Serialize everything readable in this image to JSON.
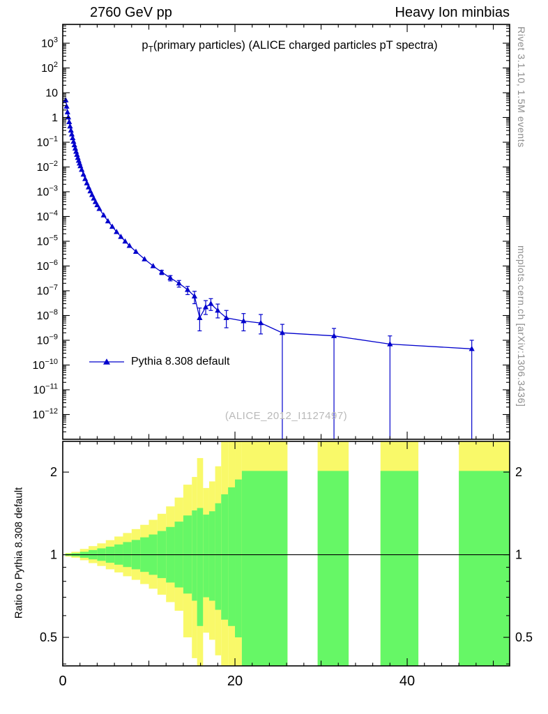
{
  "header": {
    "left": "2760 GeV pp",
    "right": "Heavy Ion minbias"
  },
  "main_title": {
    "prefix": "p",
    "sub": "T",
    "rest": "(primary particles) (ALICE charged particles pT spectra)"
  },
  "legend": {
    "label": "Pythia 8.308 default"
  },
  "watermark": "(ALICE_2012_I1127497)",
  "side_notes": {
    "top": "Rivet 3.1.10,  1.5M events",
    "bottom": "mcplots.cern.ch [arXiv:1306.3436]"
  },
  "ratio_axis_label": "Ratio to Pythia 8.308 default",
  "colors": {
    "line": "#0000cc",
    "marker": "#0000cc",
    "band_yellow": "#f9f969",
    "band_green": "#66f766",
    "frame": "#000000",
    "gray_text": "#8c8c8c",
    "watermark": "#b9b9b9"
  },
  "chart_data": {
    "type": "line",
    "title": "pT(primary particles) (ALICE charged particles pT spectra)",
    "xlabel": "",
    "ylabel": "",
    "legend_position": "left-middle",
    "grid": false,
    "xlim": [
      0,
      51.9
    ],
    "main_ylog_lim": [
      -13,
      3.76
    ],
    "ratio_ylog_lim": [
      -0.405,
      0.413
    ],
    "x_ticks": {
      "major": [
        0,
        20,
        40
      ],
      "major_labels": [
        "0",
        "20",
        "40"
      ],
      "minor_step": 2
    },
    "main_y_label_exponents": [
      3,
      2,
      1,
      0,
      -1,
      -2,
      -3,
      -4,
      -5,
      -6,
      -7,
      -8,
      -9,
      -10,
      -11,
      -12
    ],
    "ratio_ticks": {
      "major": [
        0.5,
        1,
        2
      ],
      "major_labels": [
        "0.5",
        "1",
        "2"
      ],
      "minor": [
        0.4,
        0.6,
        0.7,
        0.8,
        0.9
      ]
    },
    "ratio_reference": 1,
    "series": [
      {
        "name": "Pythia 8.308 default",
        "points": [
          [
            0.35,
            5.0
          ],
          [
            0.45,
            2.8
          ],
          [
            0.55,
            1.65
          ],
          [
            0.65,
            1.02
          ],
          [
            0.75,
            0.66
          ],
          [
            0.85,
            0.44
          ],
          [
            0.95,
            0.3
          ],
          [
            1.05,
            0.21
          ],
          [
            1.15,
            0.148
          ],
          [
            1.25,
            0.106
          ],
          [
            1.35,
            0.077
          ],
          [
            1.45,
            0.0565
          ],
          [
            1.55,
            0.042
          ],
          [
            1.65,
            0.0315
          ],
          [
            1.75,
            0.0238
          ],
          [
            1.85,
            0.0182
          ],
          [
            1.95,
            0.014
          ],
          [
            2.05,
            0.0109
          ],
          [
            2.2,
            0.0078
          ],
          [
            2.4,
            0.005
          ],
          [
            2.6,
            0.0033
          ],
          [
            2.8,
            0.00222
          ],
          [
            3.0,
            0.00152
          ],
          [
            3.2,
            0.00106
          ],
          [
            3.4,
            0.00075
          ],
          [
            3.6,
            0.00054
          ],
          [
            3.8,
            0.00039
          ],
          [
            4.0,
            0.00029
          ],
          [
            4.25,
            0.000205
          ],
          [
            4.75,
            0.000113
          ],
          [
            5.25,
            6.5e-05
          ],
          [
            5.75,
            3.9e-05
          ],
          [
            6.25,
            2.4e-05
          ],
          [
            6.75,
            1.52e-05
          ],
          [
            7.25,
            9.9e-06
          ],
          [
            7.75,
            6.6e-06
          ],
          [
            8.5,
            3.8e-06
          ],
          [
            9.5,
            1.9e-06
          ],
          [
            10.5,
            1e-06,
            8.5e-07,
            1.15e-06
          ],
          [
            11.5,
            5.6e-07,
            4.5e-07,
            6.7e-07
          ],
          [
            12.5,
            3.3e-07,
            2.5e-07,
            4.1e-07
          ],
          [
            13.5,
            2e-07,
            1.4e-07,
            2.6e-07
          ],
          [
            14.5,
            1.1e-07,
            7e-08,
            1.5e-07
          ],
          [
            15.3,
            6e-08,
            3e-08,
            9.5e-08
          ],
          [
            15.9,
            8e-09,
            2.4e-09,
            2e-08
          ],
          [
            16.6,
            2.2e-08,
            1.1e-08,
            4e-08
          ],
          [
            17.2,
            3e-08,
            1.6e-08,
            4.8e-08
          ],
          [
            18.0,
            1.6e-08,
            8e-09,
            2.9e-08
          ],
          [
            19.0,
            8e-09,
            3.2e-09,
            1.6e-08
          ],
          [
            21.0,
            6e-09,
            2.4e-09,
            1.2e-08
          ],
          [
            23.0,
            5e-09,
            1.8e-09,
            1.1e-08
          ],
          [
            25.5,
            2e-09,
            1e-13,
            4.4e-09
          ],
          [
            31.5,
            1.5e-09,
            1e-13,
            3e-09
          ],
          [
            38.0,
            7e-10,
            1e-13,
            1.5e-09
          ],
          [
            47.5,
            4.5e-10,
            1e-13,
            1e-09
          ]
        ]
      }
    ],
    "ratio_bands": [
      [
        0.3,
        1.0,
        0.992,
        1.008,
        0.985,
        1.015
      ],
      [
        1.0,
        2.0,
        0.987,
        1.013,
        0.975,
        1.025
      ],
      [
        2.0,
        3.0,
        0.975,
        1.025,
        0.955,
        1.05
      ],
      [
        3.0,
        4.0,
        0.962,
        1.04,
        0.932,
        1.075
      ],
      [
        4.0,
        5.0,
        0.95,
        1.055,
        0.91,
        1.1
      ],
      [
        5.0,
        6.0,
        0.935,
        1.07,
        0.885,
        1.13
      ],
      [
        6.0,
        7.0,
        0.92,
        1.09,
        0.862,
        1.165
      ],
      [
        7.0,
        8.0,
        0.902,
        1.112,
        0.835,
        1.2
      ],
      [
        8.0,
        9.0,
        0.885,
        1.132,
        0.81,
        1.24
      ],
      [
        9.0,
        10.0,
        0.866,
        1.157,
        0.782,
        1.285
      ],
      [
        10.0,
        11.0,
        0.845,
        1.185,
        0.752,
        1.34
      ],
      [
        11.0,
        12.0,
        0.822,
        1.22,
        0.715,
        1.41
      ],
      [
        12.0,
        13.0,
        0.792,
        1.262,
        0.672,
        1.5
      ],
      [
        13.0,
        14.0,
        0.76,
        1.32,
        0.625,
        1.615
      ],
      [
        14.0,
        15.0,
        0.722,
        1.39,
        0.5,
        1.8
      ],
      [
        15.0,
        15.6,
        0.68,
        1.45,
        0.42,
        1.92
      ],
      [
        15.6,
        16.3,
        0.55,
        1.48,
        0.36,
        2.25
      ],
      [
        16.3,
        17.0,
        0.7,
        1.4,
        0.52,
        1.75
      ],
      [
        17.0,
        17.7,
        0.68,
        1.44,
        0.49,
        1.85
      ],
      [
        17.7,
        18.4,
        0.63,
        1.54,
        0.43,
        2.1
      ],
      [
        18.4,
        19.2,
        0.58,
        1.66,
        0.37,
        2.65
      ],
      [
        19.2,
        20.0,
        0.55,
        1.76,
        0.36,
        2.65
      ],
      [
        20.0,
        20.8,
        0.5,
        1.88,
        0.36,
        2.65
      ],
      [
        20.8,
        26.1,
        0.39,
        2.02,
        0.36,
        2.65
      ],
      [
        29.6,
        33.2,
        0.39,
        2.02,
        0.36,
        2.65
      ],
      [
        36.9,
        41.3,
        0.39,
        2.02,
        0.36,
        2.65
      ],
      [
        46.0,
        51.9,
        0.39,
        2.02,
        0.36,
        2.65
      ]
    ]
  }
}
